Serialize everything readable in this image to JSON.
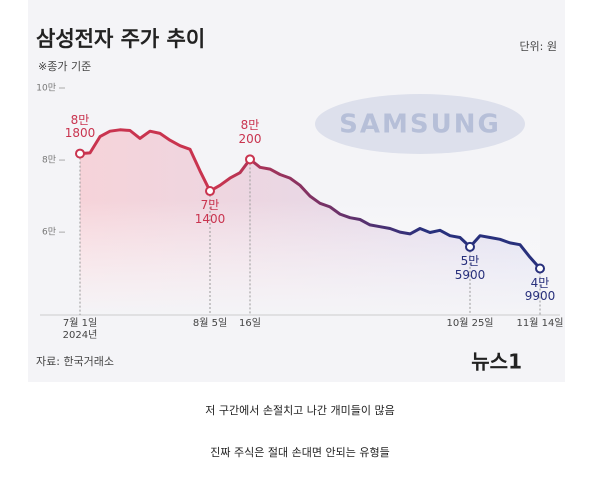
{
  "chart_data": {
    "type": "line",
    "title": "삼성전자 주가 추이",
    "subtitle": "※종가 기준",
    "unit": "단위: 원",
    "source": "자료: 한국거래소",
    "logo": "뉴스1",
    "brand": "SAMSUNG",
    "categories": [
      "7월 1일\n2024년",
      null,
      null,
      null,
      null,
      null,
      null,
      null,
      null,
      null,
      null,
      null,
      null,
      "8월 5일",
      null,
      null,
      null,
      "16일",
      null,
      null,
      null,
      null,
      null,
      null,
      null,
      null,
      null,
      null,
      null,
      null,
      null,
      null,
      null,
      null,
      null,
      null,
      null,
      null,
      null,
      "10월 25일",
      null,
      null,
      null,
      null,
      null,
      null,
      "11월 14일"
    ],
    "values": [
      81800,
      82000,
      86500,
      88000,
      88400,
      88200,
      86000,
      88000,
      87400,
      85500,
      84000,
      83000,
      77000,
      71400,
      73000,
      75000,
      76500,
      80200,
      78000,
      77500,
      76000,
      75000,
      73000,
      70000,
      68000,
      67000,
      65000,
      64000,
      63500,
      62000,
      61500,
      61000,
      60000,
      59500,
      61000,
      59900,
      60500,
      59000,
      58500,
      55900,
      59000,
      58500,
      58000,
      57000,
      56500,
      53000,
      49900
    ],
    "value_labels": [
      "8만\n1800",
      null,
      null,
      null,
      null,
      null,
      null,
      null,
      null,
      null,
      null,
      null,
      null,
      "7만\n1400",
      null,
      null,
      null,
      "8만\n200",
      null,
      null,
      null,
      null,
      null,
      null,
      null,
      null,
      null,
      null,
      null,
      null,
      null,
      null,
      null,
      null,
      null,
      null,
      null,
      null,
      null,
      "5만\n5900",
      null,
      null,
      null,
      null,
      null,
      null,
      "4만\n9900"
    ],
    "colors": [
      "#c9344f",
      "#28307c"
    ],
    "ylim": [
      37000,
      100000
    ],
    "yticks": [
      {
        "value": 60000,
        "label": "6만"
      },
      {
        "value": 80000,
        "label": "8만"
      },
      {
        "value": 100000,
        "label": "10만"
      }
    ]
  },
  "captions": [
    "저 구간에서 손절치고 나간 개미들이 많음",
    "진짜 주식은 절대 손대면 안되는 유형들"
  ]
}
